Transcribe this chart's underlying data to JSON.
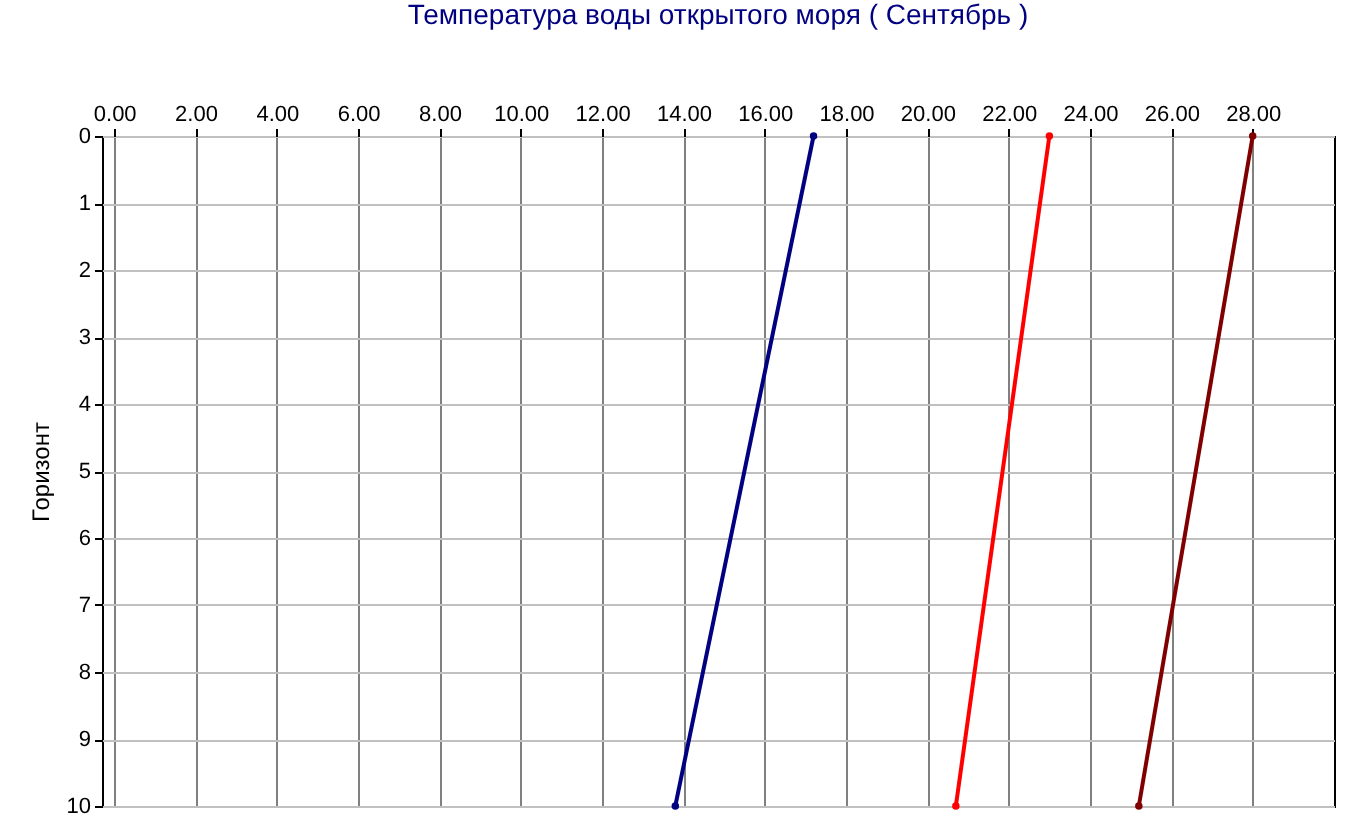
{
  "chart_data": {
    "type": "line",
    "title": "Температура воды открытого моря    ( Сентябрь )",
    "ylabel": "Горизонт",
    "series": [
      {
        "color": "#000080",
        "x": [
          17.2,
          13.8
        ],
        "values": [
          0,
          10
        ]
      },
      {
        "color": "#ff0000",
        "x": [
          23.0,
          20.7
        ],
        "values": [
          0,
          10
        ]
      },
      {
        "color": "#800000",
        "x": [
          28.0,
          25.2
        ],
        "values": [
          0,
          10
        ]
      }
    ],
    "xlim": [
      -0.3,
      30
    ],
    "xticks": [
      {
        "value": 0,
        "label": "0.00"
      },
      {
        "value": 2,
        "label": "2.00"
      },
      {
        "value": 4,
        "label": "4.00"
      },
      {
        "value": 6,
        "label": "6.00"
      },
      {
        "value": 8,
        "label": "8.00"
      },
      {
        "value": 10,
        "label": "10.00"
      },
      {
        "value": 12,
        "label": "12.00"
      },
      {
        "value": 14,
        "label": "14.00"
      },
      {
        "value": 16,
        "label": "16.00"
      },
      {
        "value": 18,
        "label": "18.00"
      },
      {
        "value": 20,
        "label": "20.00"
      },
      {
        "value": 22,
        "label": "22.00"
      },
      {
        "value": 24,
        "label": "24.00"
      },
      {
        "value": 26,
        "label": "26.00"
      },
      {
        "value": 28,
        "label": "28.00"
      }
    ],
    "ylim": [
      10,
      0
    ],
    "yticks": [
      0,
      1,
      2,
      3,
      4,
      5,
      6,
      7,
      8,
      9,
      10
    ],
    "grid": true,
    "marker": "circle",
    "line_style": "solid"
  }
}
